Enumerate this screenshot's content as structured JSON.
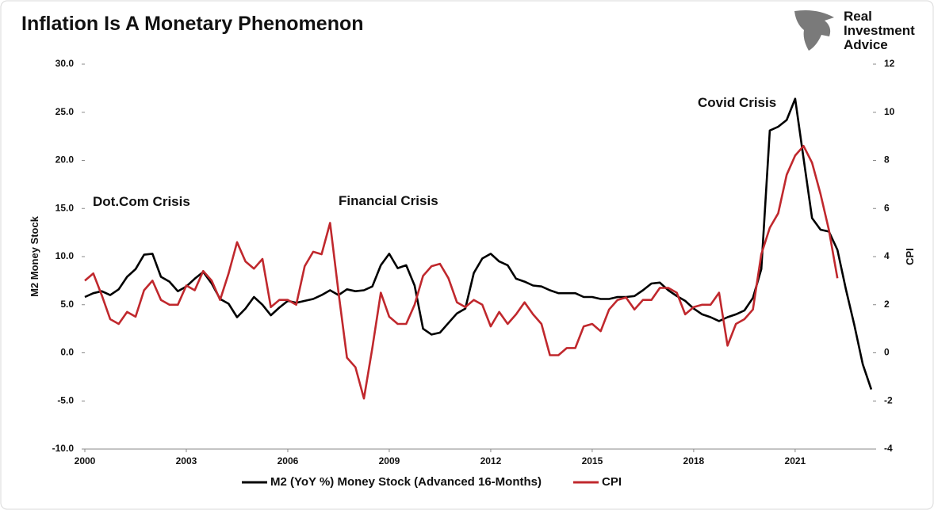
{
  "chart_data": {
    "type": "line",
    "title": "Inflation Is A Monetary Phenomenon",
    "brand": [
      "Real",
      "Investment",
      "Advice"
    ],
    "y_label": "M2 Money Stock",
    "y2_label": "CPI",
    "annotations": [
      "Dot.Com Crisis",
      "Financial Crisis",
      "Covid Crisis"
    ],
    "x": [
      2000,
      2000.25,
      2000.5,
      2000.75,
      2001,
      2001.25,
      2001.5,
      2001.75,
      2002,
      2002.25,
      2002.5,
      2002.75,
      2003,
      2003.25,
      2003.5,
      2003.75,
      2004,
      2004.25,
      2004.5,
      2004.75,
      2005,
      2005.25,
      2005.5,
      2005.75,
      2006,
      2006.25,
      2006.5,
      2006.75,
      2007,
      2007.25,
      2007.5,
      2007.75,
      2008,
      2008.25,
      2008.5,
      2008.75,
      2009,
      2009.25,
      2009.5,
      2009.75,
      2010,
      2010.25,
      2010.5,
      2010.75,
      2011,
      2011.25,
      2011.5,
      2011.75,
      2012,
      2012.25,
      2012.5,
      2012.75,
      2013,
      2013.25,
      2013.5,
      2013.75,
      2014,
      2014.25,
      2014.5,
      2014.75,
      2015,
      2015.25,
      2015.5,
      2015.75,
      2016,
      2016.25,
      2016.5,
      2016.75,
      2017,
      2017.25,
      2017.5,
      2017.75,
      2018,
      2018.25,
      2018.5,
      2018.75,
      2019,
      2019.25,
      2019.5,
      2019.75,
      2020,
      2020.25,
      2020.5,
      2020.75,
      2021,
      2021.25,
      2021.5,
      2021.75,
      2022,
      2022.25,
      2022.5,
      2022.75,
      2023,
      2023.25
    ],
    "xlim": [
      2000,
      2023.3
    ],
    "xticks": [
      2000,
      2003,
      2006,
      2009,
      2012,
      2015,
      2018,
      2021
    ],
    "ylim": [
      -10,
      30
    ],
    "yticks": [
      {
        "value": -10,
        "label": "-10.0"
      },
      {
        "value": -5,
        "label": "-5.0"
      },
      {
        "value": 0,
        "label": "0.0"
      },
      {
        "value": 5,
        "label": "5.0"
      },
      {
        "value": 10,
        "label": "10.0"
      },
      {
        "value": 15,
        "label": "15.0"
      },
      {
        "value": 20,
        "label": "20.0"
      },
      {
        "value": 25,
        "label": "25.0"
      },
      {
        "value": 30,
        "label": "30.0"
      }
    ],
    "y2lim": [
      -4,
      12
    ],
    "y2ticks": [
      -4,
      -2,
      0,
      2,
      4,
      6,
      8,
      10,
      12
    ],
    "series": [
      {
        "name": "M2 (YoY %) Money Stock (Advanced 16-Months)",
        "color": "#000000",
        "values": [
          5.8,
          6.2,
          6.4,
          6.0,
          6.6,
          7.9,
          8.7,
          10.2,
          10.3,
          7.9,
          7.4,
          6.4,
          6.9,
          7.7,
          8.4,
          7.2,
          5.6,
          5.1,
          3.7,
          4.6,
          5.8,
          5.0,
          3.9,
          4.7,
          5.4,
          5.2,
          5.4,
          5.6,
          6.0,
          6.5,
          6.0,
          6.6,
          6.4,
          6.5,
          6.9,
          9.1,
          10.3,
          8.8,
          9.1,
          7.0,
          2.5,
          1.9,
          2.1,
          3.1,
          4.1,
          4.6,
          8.3,
          9.8,
          10.3,
          9.5,
          9.1,
          7.7,
          7.4,
          7.0,
          6.9,
          6.5,
          6.2,
          6.2,
          6.2,
          5.8,
          5.8,
          5.6,
          5.6,
          5.8,
          5.8,
          5.9,
          6.5,
          7.2,
          7.3,
          6.5,
          5.9,
          5.4,
          4.6,
          4.0,
          3.7,
          3.3,
          3.7,
          4.0,
          4.4,
          5.7,
          8.7,
          23.1,
          23.5,
          24.2,
          26.4,
          20.2,
          14.0,
          12.8,
          12.6,
          10.7,
          6.6,
          2.9,
          -1.2,
          -3.8
        ]
      },
      {
        "name": "CPI",
        "color": "#c0282d",
        "axis": "y2",
        "values": [
          3.0,
          3.3,
          2.4,
          1.4,
          1.2,
          1.7,
          1.5,
          2.6,
          3.0,
          2.2,
          2.0,
          2.0,
          2.8,
          2.6,
          3.4,
          3.0,
          2.2,
          3.3,
          4.6,
          3.8,
          3.5,
          3.9,
          1.9,
          2.2,
          2.2,
          2.0,
          3.6,
          4.2,
          4.1,
          5.4,
          2.5,
          -0.2,
          -0.6,
          -1.9,
          0.2,
          2.5,
          1.5,
          1.2,
          1.2,
          2.0,
          3.2,
          3.6,
          3.7,
          3.1,
          2.1,
          1.9,
          2.2,
          2.0,
          1.1,
          1.7,
          1.2,
          1.6,
          2.1,
          1.6,
          1.2,
          -0.1,
          -0.1,
          0.2,
          0.2,
          1.1,
          1.2,
          0.9,
          1.8,
          2.2,
          2.3,
          1.8,
          2.2,
          2.2,
          2.7,
          2.7,
          2.5,
          1.6,
          1.9,
          2.0,
          2.0,
          2.5,
          0.3,
          1.2,
          1.4,
          1.8,
          4.1,
          5.2,
          5.8,
          7.4,
          8.2,
          8.6,
          7.9,
          6.6,
          5.1,
          3.1,
          null,
          null,
          null,
          null
        ]
      }
    ]
  }
}
